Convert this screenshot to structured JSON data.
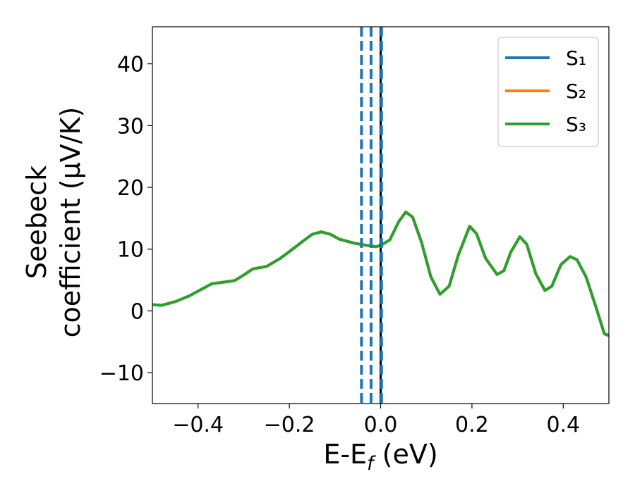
{
  "chart_data": {
    "type": "line",
    "xlabel": [
      "E-E",
      "f",
      " (eV)"
    ],
    "ylabel": [
      "Seebeck",
      "coefficient  (μV/K)"
    ],
    "x": [
      -0.5,
      -0.48,
      -0.45,
      -0.42,
      -0.4,
      -0.37,
      -0.35,
      -0.32,
      -0.3,
      -0.28,
      -0.25,
      -0.22,
      -0.2,
      -0.17,
      -0.15,
      -0.13,
      -0.11,
      -0.09,
      -0.06,
      -0.03,
      -0.01,
      0.0,
      0.02,
      0.04,
      0.055,
      0.07,
      0.09,
      0.11,
      0.13,
      0.15,
      0.17,
      0.195,
      0.21,
      0.23,
      0.255,
      0.27,
      0.285,
      0.305,
      0.32,
      0.34,
      0.36,
      0.375,
      0.395,
      0.415,
      0.43,
      0.45,
      0.47,
      0.49,
      0.5
    ],
    "series": [
      {
        "name": "S₁",
        "color": "#1f77b4",
        "values": [
          1.0,
          0.9,
          1.5,
          2.4,
          3.2,
          4.4,
          4.6,
          4.9,
          5.8,
          6.8,
          7.2,
          8.5,
          9.6,
          11.3,
          12.4,
          12.8,
          12.4,
          11.6,
          11.0,
          10.6,
          10.4,
          10.6,
          11.5,
          14.5,
          16.0,
          15.2,
          11.0,
          5.5,
          2.7,
          4.0,
          9.0,
          13.7,
          12.5,
          8.5,
          5.9,
          6.5,
          9.5,
          12.0,
          10.8,
          6.0,
          3.3,
          4.0,
          7.5,
          8.8,
          8.3,
          5.5,
          1.0,
          -3.7,
          -4.0
        ]
      },
      {
        "name": "S₂",
        "color": "#ff7f0e",
        "values": [
          1.0,
          0.9,
          1.5,
          2.4,
          3.2,
          4.4,
          4.6,
          4.9,
          5.8,
          6.8,
          7.2,
          8.5,
          9.6,
          11.3,
          12.4,
          12.8,
          12.4,
          11.6,
          11.0,
          10.6,
          10.4,
          10.6,
          11.5,
          14.5,
          16.0,
          15.2,
          11.0,
          5.5,
          2.7,
          4.0,
          9.0,
          13.7,
          12.5,
          8.5,
          5.9,
          6.5,
          9.5,
          12.0,
          10.8,
          6.0,
          3.3,
          4.0,
          7.5,
          8.8,
          8.3,
          5.5,
          1.0,
          -3.7,
          -4.0
        ]
      },
      {
        "name": "S₃",
        "color": "#2ca02c",
        "values": [
          1.0,
          0.9,
          1.5,
          2.4,
          3.2,
          4.4,
          4.6,
          4.9,
          5.8,
          6.8,
          7.2,
          8.5,
          9.6,
          11.3,
          12.4,
          12.8,
          12.4,
          11.6,
          11.0,
          10.6,
          10.4,
          10.6,
          11.5,
          14.5,
          16.0,
          15.2,
          11.0,
          5.5,
          2.7,
          4.0,
          9.0,
          13.7,
          12.5,
          8.5,
          5.9,
          6.5,
          9.5,
          12.0,
          10.8,
          6.0,
          3.3,
          4.0,
          7.5,
          8.8,
          8.3,
          5.5,
          1.0,
          -3.7,
          -4.0
        ]
      }
    ],
    "vlines": [
      {
        "x": -0.042,
        "color": "#1f77b4",
        "style": "dashed"
      },
      {
        "x": -0.021,
        "color": "#1f77b4",
        "style": "dashed"
      },
      {
        "x": 0.0,
        "color": "#000000",
        "style": "solid"
      },
      {
        "x": 0.002,
        "color": "#1f77b4",
        "style": "dashed"
      }
    ],
    "xlim": [
      -0.5,
      0.5
    ],
    "ylim": [
      -15,
      46
    ],
    "xticks": [
      {
        "value": -0.4,
        "label": "−0.4"
      },
      {
        "value": -0.2,
        "label": "−0.2"
      },
      {
        "value": 0,
        "label": "0.0"
      },
      0.2,
      0.4
    ],
    "yticks": [
      {
        "value": -10,
        "label": "−10"
      },
      0,
      10,
      20,
      30,
      40
    ],
    "legend": "upper right"
  }
}
